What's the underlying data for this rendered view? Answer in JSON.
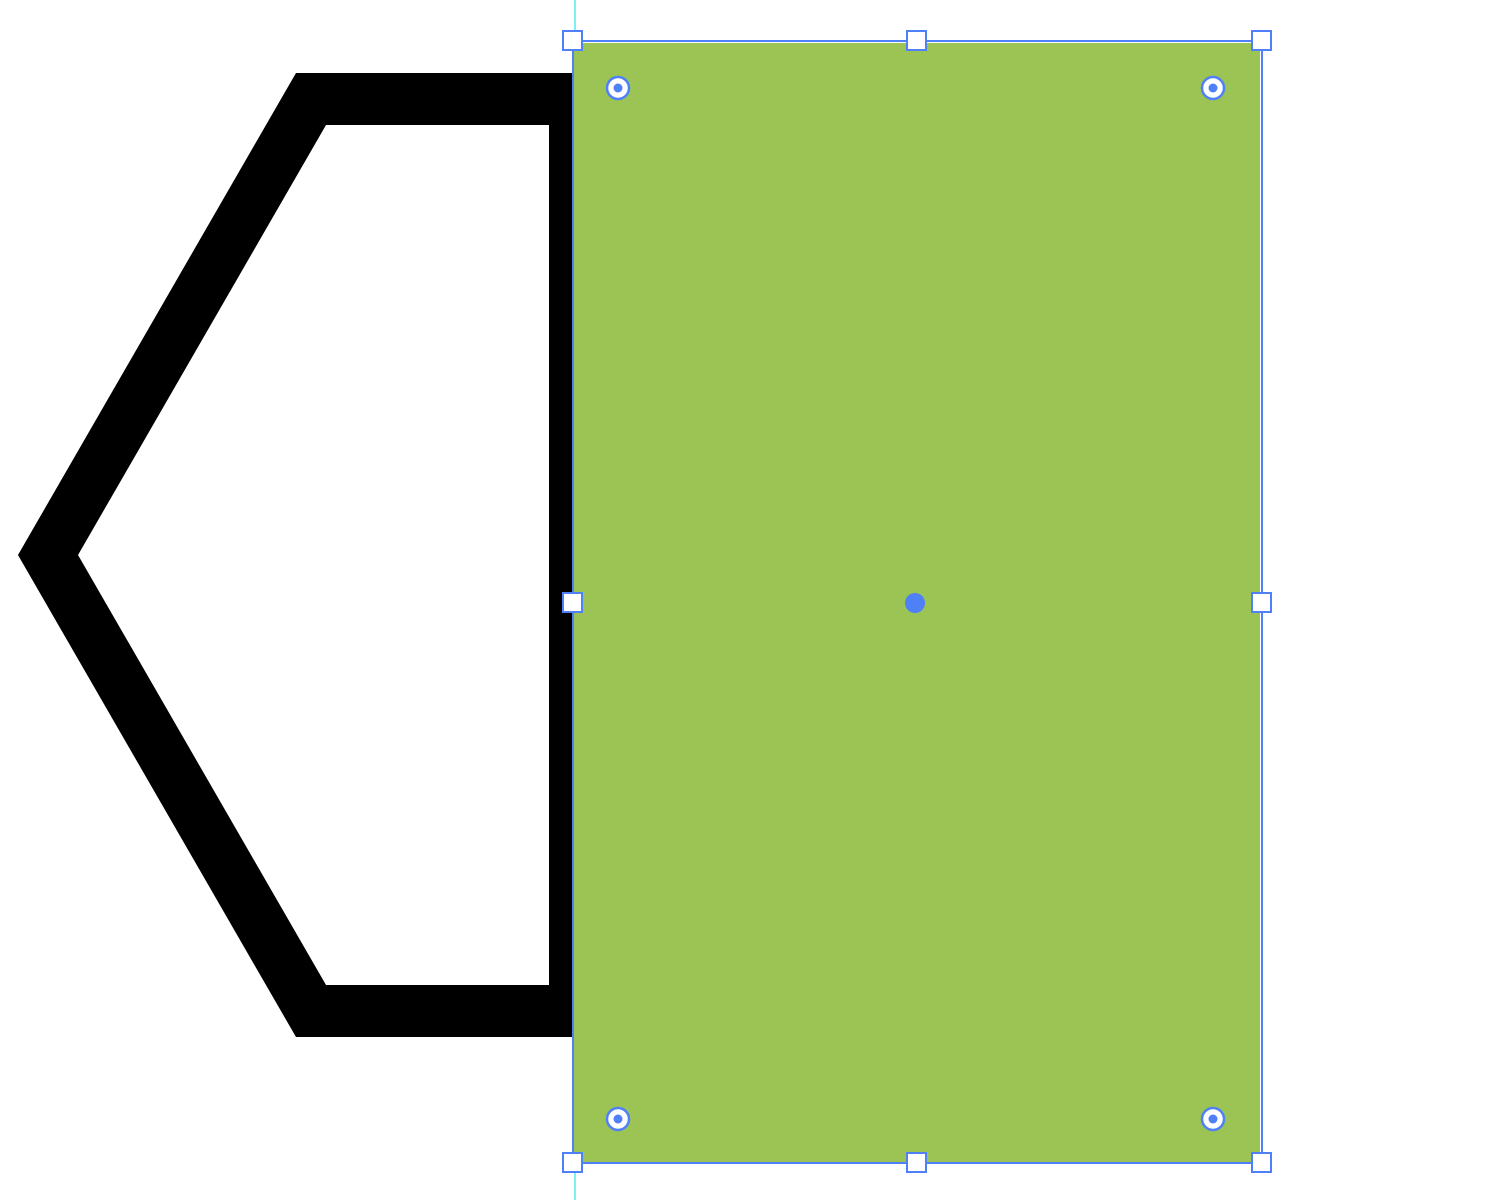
{
  "canvas": {
    "background_color": "#ffffff",
    "guide_color": "#7ff0f2"
  },
  "shapes": {
    "hexagon_outline": {
      "icon": "hexagon-outline",
      "stroke_color": "#000000",
      "fill_color": "none"
    },
    "selected_rectangle": {
      "icon": "rectangle",
      "fill_color": "#9bc455",
      "selection_color": "#4f80f7"
    }
  },
  "selection": {
    "bounding_box_handles": [
      "top-left",
      "top-center",
      "top-right",
      "middle-left",
      "middle-right",
      "bottom-left",
      "bottom-center",
      "bottom-right"
    ],
    "corner_radius_widgets": [
      "top-left",
      "top-right",
      "bottom-left",
      "bottom-right"
    ],
    "center_point": "center"
  }
}
